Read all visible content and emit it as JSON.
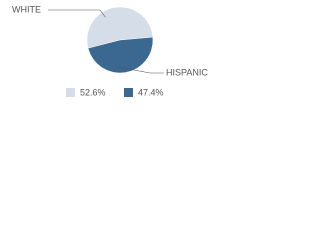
{
  "chart_data": {
    "type": "pie",
    "categories": [
      "WHITE",
      "HISPANIC"
    ],
    "values": [
      52.6,
      47.4
    ],
    "value_labels": [
      "52.6%",
      "47.4%"
    ],
    "colors": [
      "#d5dee8",
      "#3b6890"
    ]
  }
}
